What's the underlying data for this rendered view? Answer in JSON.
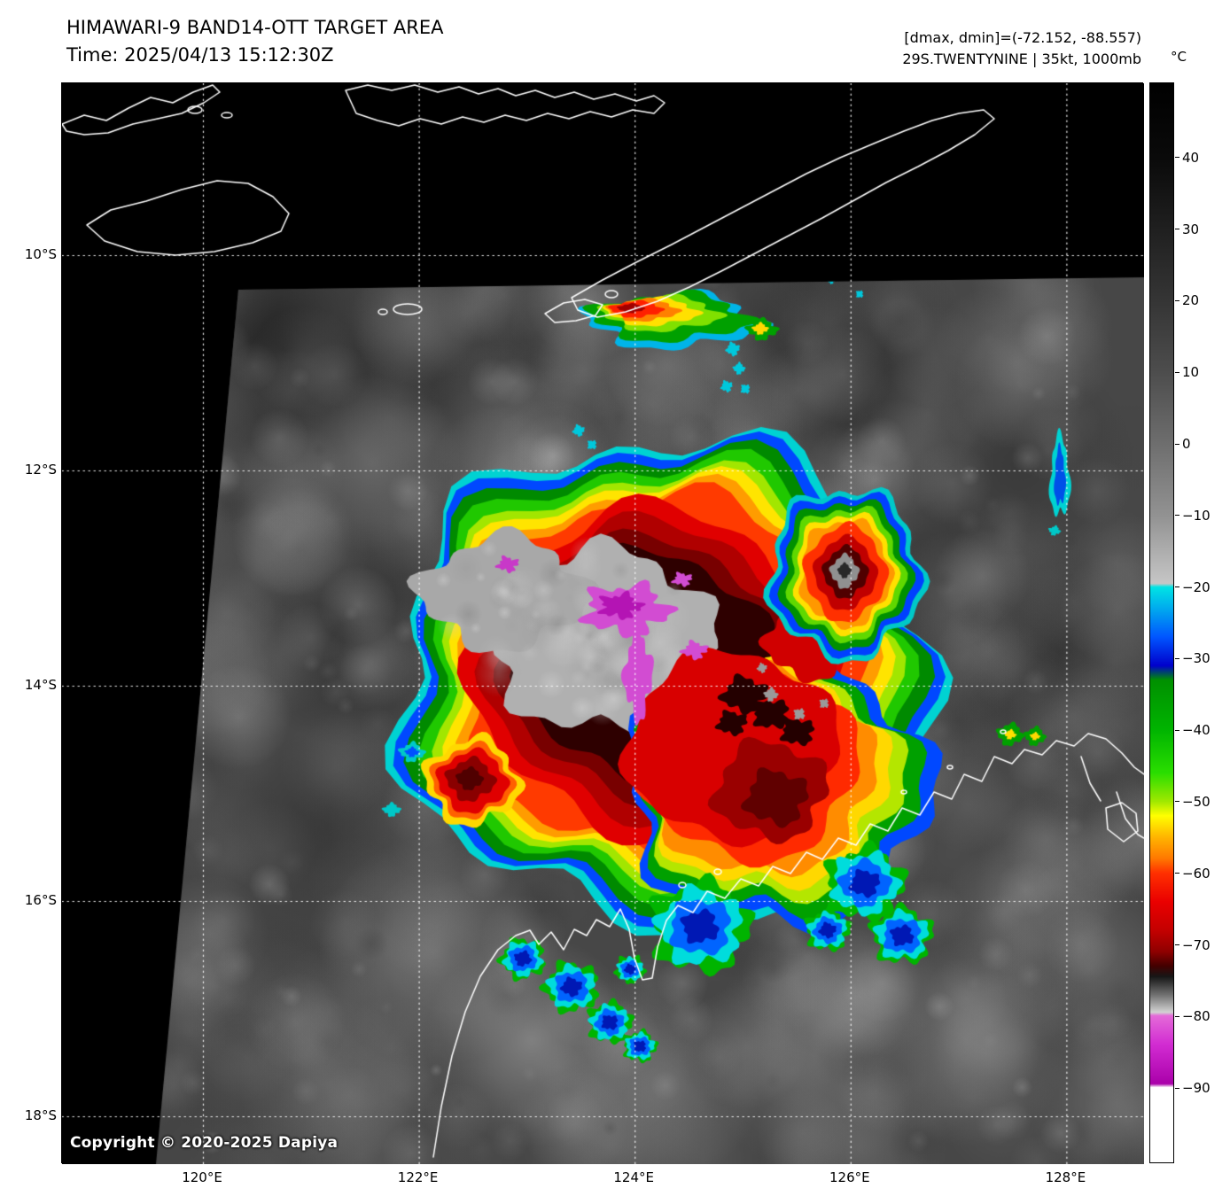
{
  "header": {
    "title": "HIMAWARI-9 BAND14-OTT TARGET AREA",
    "time": "Time: 2025/04/13 15:12:30Z",
    "dmax_dmin": "[dmax, dmin]=(-72.152, -88.557)",
    "storm_info": "29S.TWENTYNINE | 35kt, 1000mb"
  },
  "colorbar": {
    "unit": "°C",
    "ticks": [
      {
        "label": "40",
        "value": 40
      },
      {
        "label": "30",
        "value": 30
      },
      {
        "label": "20",
        "value": 20
      },
      {
        "label": "10",
        "value": 10
      },
      {
        "label": "0",
        "value": 0
      },
      {
        "label": "−10",
        "value": -10
      },
      {
        "label": "−20",
        "value": -20
      },
      {
        "label": "−30",
        "value": -30
      },
      {
        "label": "−40",
        "value": -40
      },
      {
        "label": "−50",
        "value": -50
      },
      {
        "label": "−60",
        "value": -60
      },
      {
        "label": "−70",
        "value": -70
      },
      {
        "label": "−80",
        "value": -80
      },
      {
        "label": "−90",
        "value": -90
      }
    ]
  },
  "axes": {
    "lat_ticks": [
      {
        "label": "10°S",
        "lat": -10
      },
      {
        "label": "12°S",
        "lat": -12
      },
      {
        "label": "14°S",
        "lat": -14
      },
      {
        "label": "16°S",
        "lat": -16
      },
      {
        "label": "18°S",
        "lat": -18
      }
    ],
    "lon_ticks": [
      {
        "label": "120°E",
        "lon": 120
      },
      {
        "label": "122°E",
        "lon": 122
      },
      {
        "label": "124°E",
        "lon": 124
      },
      {
        "label": "126°E",
        "lon": 126
      },
      {
        "label": "128°E",
        "lon": 128
      }
    ]
  },
  "map": {
    "copyright": "Copyright © 2020-2025 Dapiya"
  }
}
